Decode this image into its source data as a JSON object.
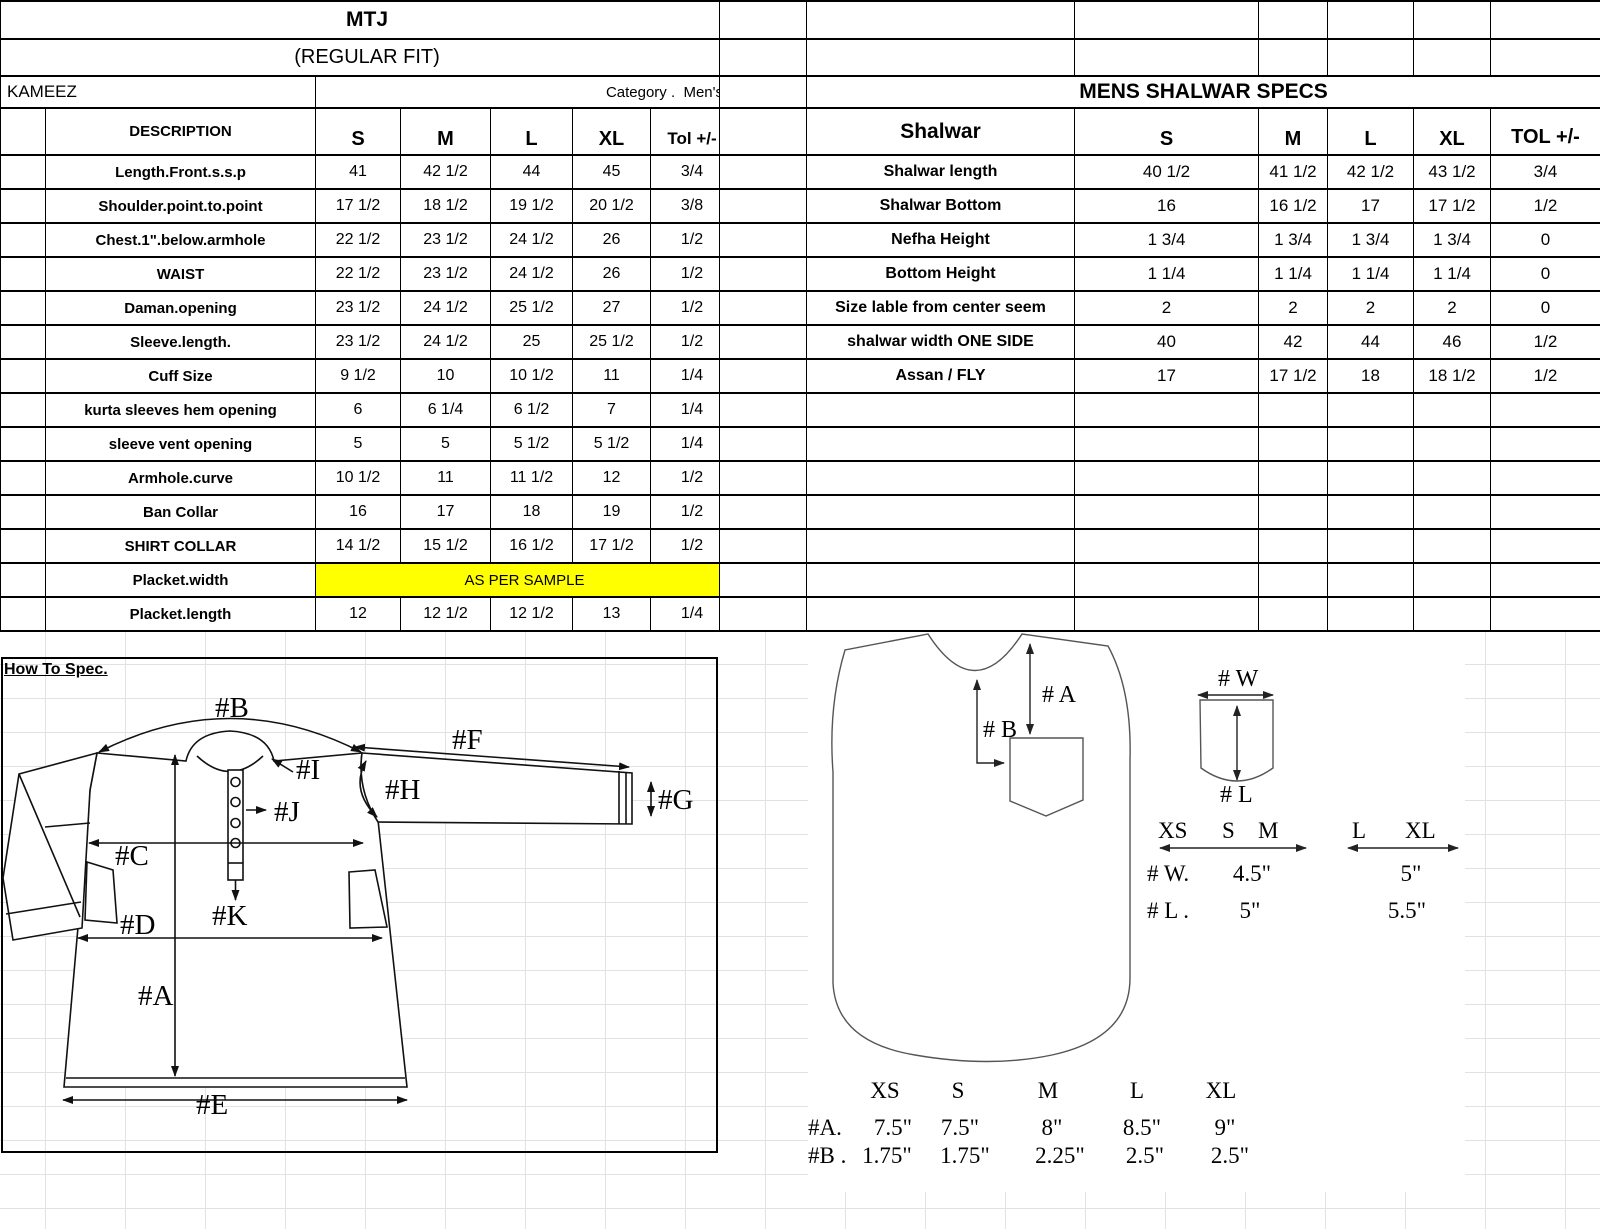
{
  "kameez_table": {
    "title": "MTJ",
    "subtitle": "(REGULAR FIT)",
    "garment": "KAMEEZ",
    "category": "Category .  Men's",
    "columns": [
      "DESCRIPTION",
      "S",
      "M",
      "L",
      "XL",
      "Tol +/-"
    ],
    "rows": [
      {
        "desc": "Length.Front.s.s.p",
        "values": [
          "41",
          "42 1/2",
          "44",
          "45",
          "3/4"
        ]
      },
      {
        "desc": "Shoulder.point.to.point",
        "values": [
          "17 1/2",
          "18 1/2",
          "19 1/2",
          "20 1/2",
          "3/8"
        ]
      },
      {
        "desc": "Chest.1\".below.armhole",
        "values": [
          "22 1/2",
          "23 1/2",
          "24 1/2",
          "26",
          "1/2"
        ]
      },
      {
        "desc": "WAIST",
        "values": [
          "22 1/2",
          "23 1/2",
          "24 1/2",
          "26",
          "1/2"
        ]
      },
      {
        "desc": "Daman.opening",
        "values": [
          "23 1/2",
          "24 1/2",
          "25 1/2",
          "27",
          "1/2"
        ]
      },
      {
        "desc": "Sleeve.length.",
        "values": [
          "23 1/2",
          "24 1/2",
          "25",
          "25 1/2",
          "1/2"
        ]
      },
      {
        "desc": "Cuff Size",
        "values": [
          "9 1/2",
          "10",
          "10 1/2",
          "11",
          "1/4"
        ]
      },
      {
        "desc": "kurta sleeves hem opening",
        "values": [
          "6",
          "6 1/4",
          "6 1/2",
          "7",
          "1/4"
        ]
      },
      {
        "desc": "sleeve vent opening",
        "values": [
          "5",
          "5",
          "5 1/2",
          "5 1/2",
          "1/4"
        ]
      },
      {
        "desc": "Armhole.curve",
        "values": [
          "10 1/2",
          "11",
          "11 1/2",
          "12",
          "1/2"
        ]
      },
      {
        "desc": "Ban Collar",
        "values": [
          "16",
          "17",
          "18",
          "19",
          "1/2"
        ]
      },
      {
        "desc": "SHIRT COLLAR",
        "values": [
          "14 1/2",
          "15 1/2",
          "16 1/2",
          "17 1/2",
          "1/2"
        ]
      },
      {
        "desc": "Placket.width",
        "span": "AS PER SAMPLE"
      },
      {
        "desc": "Placket.length",
        "values": [
          "12",
          "12 1/2",
          "12 1/2",
          "13",
          "1/4"
        ]
      }
    ]
  },
  "shalwar_table": {
    "title": "MENS SHALWAR SPECS",
    "columns": [
      "Shalwar",
      "S",
      "M",
      "L",
      "XL",
      "TOL +/-"
    ],
    "rows": [
      {
        "desc": "Shalwar length",
        "values": [
          "40 1/2",
          "41 1/2",
          "42 1/2",
          "43 1/2",
          "3/4"
        ]
      },
      {
        "desc": "Shalwar Bottom",
        "values": [
          "16",
          "16 1/2",
          "17",
          "17 1/2",
          "1/2"
        ]
      },
      {
        "desc": "Nefha Height",
        "values": [
          "1 3/4",
          "1 3/4",
          "1 3/4",
          "1 3/4",
          "0"
        ]
      },
      {
        "desc": "Bottom Height",
        "values": [
          "1 1/4",
          "1 1/4",
          "1 1/4",
          "1 1/4",
          "0"
        ]
      },
      {
        "desc": "Size lable from center seem",
        "values": [
          "2",
          "2",
          "2",
          "2",
          "0"
        ]
      },
      {
        "desc": "shalwar width ONE SIDE",
        "values": [
          "40",
          "42",
          "44",
          "46",
          "1/2"
        ]
      },
      {
        "desc": "Assan / FLY",
        "values": [
          "17",
          "17 1/2",
          "18",
          "18 1/2",
          "1/2"
        ]
      }
    ],
    "empty_row_count": 7
  },
  "how_to_spec": {
    "heading": "How To Spec.",
    "labels": {
      "A": "#A",
      "B": "#B",
      "C": "#C",
      "D": "#D",
      "E": "#E",
      "F": "#F",
      "G": "#G",
      "H": "#H",
      "I": "#I",
      "J": "#J",
      "K": "#K"
    }
  },
  "shalwar_diagram": {
    "garment_labels": {
      "a": "# A",
      "b": "# B"
    },
    "pocket_labels": {
      "w": "# W",
      "l": "# L"
    },
    "range1": {
      "s0": "XS",
      "s1": "S",
      "s2": "M"
    },
    "range2": {
      "s0": "L",
      "s1": "XL"
    },
    "pocket_spec_rows": [
      {
        "label": "# W.",
        "v1": "4.5\"",
        "v2": "5\""
      },
      {
        "label": "# L .",
        "v1": "5\"",
        "v2": "5.5\""
      }
    ],
    "size_table": {
      "sizes": [
        "XS",
        "S",
        "M",
        "L",
        "XL"
      ],
      "rows": [
        {
          "label": "#A.",
          "values": [
            "7.5\"",
            "7.5\"",
            "8\"",
            "8.5\"",
            "9\""
          ]
        },
        {
          "label": "#B .",
          "values": [
            "1.75\"",
            "1.75\"",
            "2.25\"",
            "2.5\"",
            "2.5\""
          ]
        }
      ]
    }
  },
  "colors": {
    "highlight": "#FFFF00",
    "grid": "#E2E2E2",
    "border": "#000000"
  }
}
